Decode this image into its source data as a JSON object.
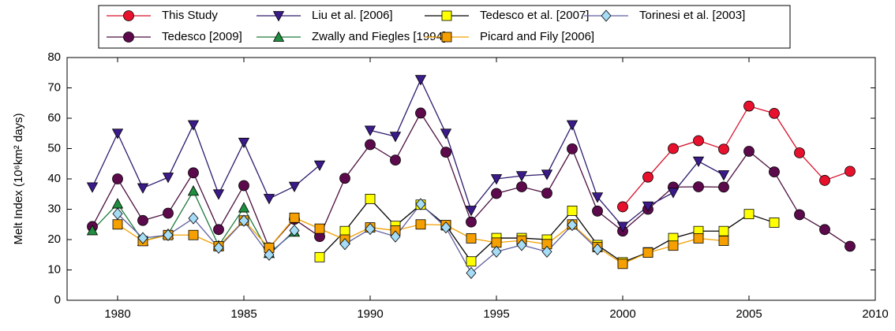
{
  "chart_data": {
    "type": "line",
    "y_label": "Melt Index (10⁶km² days)",
    "x": [
      1979,
      1980,
      1981,
      1982,
      1983,
      1984,
      1985,
      1986,
      1987,
      1988,
      1989,
      1990,
      1991,
      1992,
      1993,
      1994,
      1995,
      1996,
      1997,
      1998,
      1999,
      2000,
      2001,
      2002,
      2003,
      2004,
      2005,
      2006,
      2007,
      2008,
      2009
    ],
    "xlim": [
      1978,
      2010
    ],
    "xticks": [
      1980,
      1985,
      1990,
      1995,
      2000,
      2005,
      2010
    ],
    "ylim": [
      0,
      80
    ],
    "yticks": [
      0,
      10,
      20,
      30,
      40,
      50,
      60,
      70,
      80
    ],
    "legend": "top",
    "legend_columns": 4,
    "series": [
      {
        "name": "This Study",
        "color": "#d8102a",
        "marker_color": "#e8112d",
        "marker": "circle",
        "values": [
          null,
          null,
          null,
          null,
          null,
          null,
          null,
          null,
          null,
          null,
          null,
          null,
          null,
          null,
          null,
          null,
          null,
          null,
          null,
          null,
          null,
          30.8,
          40.6,
          50,
          52.6,
          49.8,
          64,
          61.6,
          48.6,
          39.5,
          42.5
        ]
      },
      {
        "name": "Tedesco [2009]",
        "color": "#4b0f3f",
        "marker_color": "#5c0a4c",
        "marker": "circle",
        "values": [
          24.3,
          40,
          26.3,
          28.7,
          42,
          23.3,
          37.8,
          17.3,
          26.7,
          21,
          40.2,
          51.3,
          46.2,
          61.7,
          48.8,
          25.8,
          35.2,
          37.4,
          35.3,
          49.9,
          29.4,
          22.8,
          30,
          37.3,
          37.4,
          37.3,
          49.1,
          42.3,
          28.2,
          23.3,
          17.8
        ]
      },
      {
        "name": "Liu et al. [2006]",
        "color": "#2e1a6e",
        "marker_color": "#3b1a8a",
        "marker": "triangle-down",
        "values": [
          37.3,
          55,
          37,
          40.5,
          57.8,
          35,
          52,
          33.5,
          37.5,
          44.5,
          null,
          56,
          54,
          72.7,
          55,
          29.6,
          40,
          41,
          41.5,
          57.8,
          34,
          24.3,
          31,
          35.5,
          45.8,
          41.3,
          null,
          null,
          null,
          null,
          null
        ]
      },
      {
        "name": "Zwally and Fiegles [1994]",
        "color": "#1e7a3a",
        "marker_color": "#1f8e3f",
        "marker": "triangle-up",
        "values": [
          23,
          31.8,
          19.5,
          21.8,
          36,
          18,
          30.5,
          15.5,
          22.5,
          null,
          null,
          null,
          null,
          null,
          null,
          null,
          null,
          null,
          null,
          null,
          null,
          null,
          null,
          null,
          null,
          null,
          null,
          null,
          null,
          null,
          null
        ]
      },
      {
        "name": "Tedesco et al. [2007]",
        "color": "#000000",
        "marker_color": "#ffff00",
        "marker": "square",
        "values": [
          null,
          null,
          null,
          null,
          null,
          null,
          null,
          null,
          null,
          14.2,
          22.8,
          33.4,
          24.5,
          31.5,
          24.7,
          12.8,
          20.5,
          20.5,
          20,
          29.5,
          18.2,
          12.5,
          15.8,
          20.5,
          22.8,
          22.8,
          28.4,
          25.6,
          null,
          null,
          null
        ]
      },
      {
        "name": "Picard and Fily [2006]",
        "color": "#f0a000",
        "marker_color": "#f5a000",
        "marker": "square",
        "values": [
          null,
          25,
          19.5,
          21.5,
          21.5,
          17.8,
          26.3,
          17.3,
          27.2,
          23.6,
          20,
          24,
          23,
          25,
          24.8,
          20.4,
          19,
          19.7,
          18.5,
          25,
          17.5,
          12,
          15.7,
          18,
          20.4,
          19.6,
          null,
          null,
          null,
          null,
          null
        ]
      },
      {
        "name": "Torinesi et al. [2003]",
        "color": "#5f5fa0",
        "marker_color": "#a6dcf5",
        "marker": "diamond",
        "values": [
          null,
          28.5,
          20.5,
          21.5,
          27,
          17.3,
          26.2,
          15,
          23,
          null,
          18.5,
          23.5,
          21,
          31.7,
          24,
          9,
          16,
          18.2,
          16,
          24.8,
          16.8,
          null,
          null,
          null,
          null,
          null,
          null,
          null,
          null,
          null,
          null
        ]
      }
    ]
  }
}
